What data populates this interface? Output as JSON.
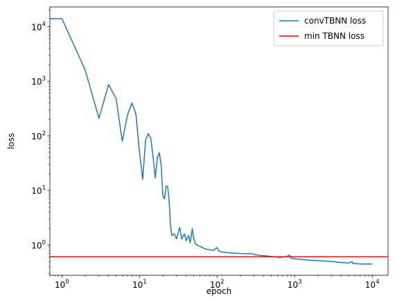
{
  "chart_data": {
    "type": "line",
    "xlabel": "epoch",
    "ylabel": "loss",
    "xscale": "log",
    "yscale": "log",
    "xlim": [
      0.7,
      16000
    ],
    "ylim": [
      0.28,
      23000
    ],
    "grid": false,
    "legend_position": "top-right",
    "x_ticks": [
      {
        "value": 1,
        "base": "10",
        "exp": "0"
      },
      {
        "value": 10,
        "base": "10",
        "exp": "1"
      },
      {
        "value": 100,
        "base": "10",
        "exp": "2"
      },
      {
        "value": 1000,
        "base": "10",
        "exp": "3"
      },
      {
        "value": 10000,
        "base": "10",
        "exp": "4"
      }
    ],
    "y_ticks": [
      {
        "value": 1,
        "base": "10",
        "exp": "0"
      },
      {
        "value": 10,
        "base": "10",
        "exp": "1"
      },
      {
        "value": 100,
        "base": "10",
        "exp": "2"
      },
      {
        "value": 1000,
        "base": "10",
        "exp": "3"
      },
      {
        "value": 10000,
        "base": "10",
        "exp": "4"
      }
    ],
    "series": [
      {
        "name": "convTBNN loss",
        "color": "#1f77b4",
        "x": [
          0.7,
          1,
          2,
          3,
          4,
          5,
          6,
          7,
          8,
          9,
          10,
          11,
          12,
          13,
          14,
          15,
          16,
          17,
          18,
          19,
          20,
          21,
          22,
          23,
          24,
          25,
          26,
          28,
          30,
          33,
          35,
          38,
          40,
          43,
          45,
          48,
          50,
          52,
          55,
          60,
          65,
          70,
          80,
          90,
          100,
          105,
          110,
          120,
          150,
          200,
          250,
          280,
          300,
          350,
          400,
          500,
          600,
          700,
          800,
          850,
          900,
          1000,
          1500,
          2000,
          3000,
          4000,
          5000,
          5500,
          5600,
          6000,
          7000,
          8000,
          9000,
          10000
        ],
        "y": [
          14000,
          14000,
          1600,
          210,
          870,
          480,
          80,
          240,
          400,
          250,
          50,
          16,
          85,
          110,
          90,
          40,
          17,
          40,
          49,
          30,
          8,
          7,
          12,
          12,
          7,
          2.5,
          1.5,
          1.6,
          1.3,
          2.1,
          1.3,
          1.6,
          1.2,
          1.5,
          1.1,
          2.0,
          1.3,
          1.1,
          1.0,
          0.95,
          0.9,
          0.85,
          0.82,
          0.8,
          0.9,
          0.78,
          0.76,
          0.74,
          0.72,
          0.7,
          0.69,
          0.7,
          0.67,
          0.65,
          0.64,
          0.62,
          0.6,
          0.6,
          0.62,
          0.66,
          0.58,
          0.56,
          0.53,
          0.52,
          0.5,
          0.48,
          0.47,
          0.5,
          0.46,
          0.46,
          0.45,
          0.45,
          0.45,
          0.45
        ]
      },
      {
        "name": "min TBNN loss",
        "color": "#e00000",
        "type": "hline",
        "y": 0.61
      }
    ]
  }
}
